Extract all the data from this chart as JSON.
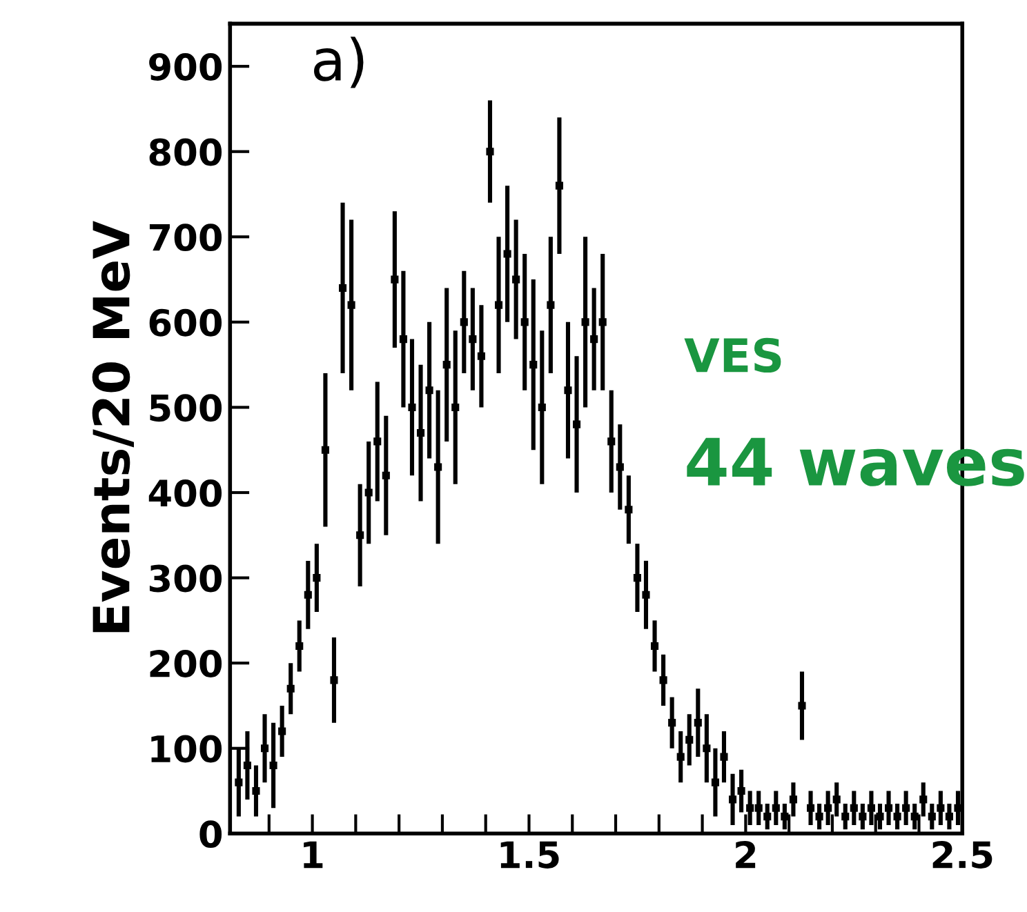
{
  "chart_data": {
    "type": "scatter",
    "ylabel": "Events/20 MeV",
    "annotations": [
      "a)",
      "VES",
      "44 waves"
    ],
    "x": [
      0.83,
      0.85,
      0.87,
      0.89,
      0.91,
      0.93,
      0.95,
      0.97,
      0.99,
      1.01,
      1.03,
      1.05,
      1.07,
      1.09,
      1.11,
      1.13,
      1.15,
      1.17,
      1.19,
      1.21,
      1.23,
      1.25,
      1.27,
      1.29,
      1.31,
      1.33,
      1.35,
      1.37,
      1.39,
      1.41,
      1.43,
      1.45,
      1.47,
      1.49,
      1.51,
      1.53,
      1.55,
      1.57,
      1.59,
      1.61,
      1.63,
      1.65,
      1.67,
      1.69,
      1.71,
      1.73,
      1.75,
      1.77,
      1.79,
      1.81,
      1.83,
      1.85,
      1.87,
      1.89,
      1.91,
      1.93,
      1.95,
      1.97,
      1.99,
      2.01,
      2.03,
      2.05,
      2.07,
      2.09,
      2.11,
      2.13,
      2.15,
      2.17,
      2.19,
      2.21,
      2.23,
      2.25,
      2.27,
      2.29,
      2.31,
      2.33,
      2.35,
      2.37,
      2.39,
      2.41,
      2.43,
      2.45,
      2.47,
      2.49
    ],
    "values": [
      60,
      80,
      50,
      100,
      80,
      120,
      170,
      220,
      280,
      300,
      450,
      180,
      640,
      620,
      350,
      400,
      460,
      420,
      650,
      580,
      500,
      470,
      520,
      430,
      550,
      500,
      600,
      580,
      560,
      800,
      620,
      680,
      650,
      600,
      550,
      500,
      620,
      760,
      520,
      480,
      600,
      580,
      600,
      460,
      430,
      380,
      300,
      280,
      220,
      180,
      130,
      90,
      110,
      130,
      100,
      60,
      90,
      40,
      50,
      30,
      30,
      20,
      30,
      20,
      40,
      150,
      30,
      20,
      30,
      40,
      20,
      30,
      20,
      30,
      20,
      30,
      20,
      30,
      20,
      40,
      20,
      30,
      20,
      30
    ],
    "errors": [
      40,
      40,
      30,
      40,
      50,
      30,
      30,
      30,
      40,
      40,
      90,
      50,
      100,
      100,
      60,
      60,
      70,
      70,
      80,
      80,
      80,
      80,
      80,
      90,
      90,
      90,
      60,
      60,
      60,
      60,
      80,
      80,
      70,
      80,
      100,
      90,
      80,
      80,
      80,
      80,
      100,
      60,
      80,
      60,
      50,
      40,
      40,
      40,
      30,
      30,
      30,
      30,
      30,
      40,
      40,
      40,
      30,
      30,
      25,
      20,
      20,
      15,
      20,
      15,
      20,
      40,
      20,
      15,
      20,
      20,
      15,
      20,
      15,
      20,
      15,
      20,
      15,
      20,
      15,
      20,
      15,
      20,
      15,
      20
    ],
    "color": "#000000",
    "marker": "square",
    "xlim": [
      0.81,
      2.5
    ],
    "xticks": [
      {
        "value": 0.9,
        "label": null
      },
      1,
      {
        "value": 1.1,
        "label": null
      },
      {
        "value": 1.2,
        "label": null
      },
      {
        "value": 1.3,
        "label": null
      },
      {
        "value": 1.4,
        "label": null
      },
      1.5,
      {
        "value": 1.6,
        "label": null
      },
      {
        "value": 1.7,
        "label": null
      },
      {
        "value": 1.8,
        "label": null
      },
      {
        "value": 1.9,
        "label": null
      },
      2,
      {
        "value": 2.1,
        "label": null
      },
      {
        "value": 2.2,
        "label": null
      },
      {
        "value": 2.3,
        "label": null
      },
      {
        "value": 2.4,
        "label": null
      },
      2.5
    ],
    "ylim": [
      0,
      950
    ],
    "yticks": [
      0,
      100,
      200,
      300,
      400,
      500,
      600,
      700,
      800,
      900
    ],
    "grid": false,
    "legend": false
  }
}
